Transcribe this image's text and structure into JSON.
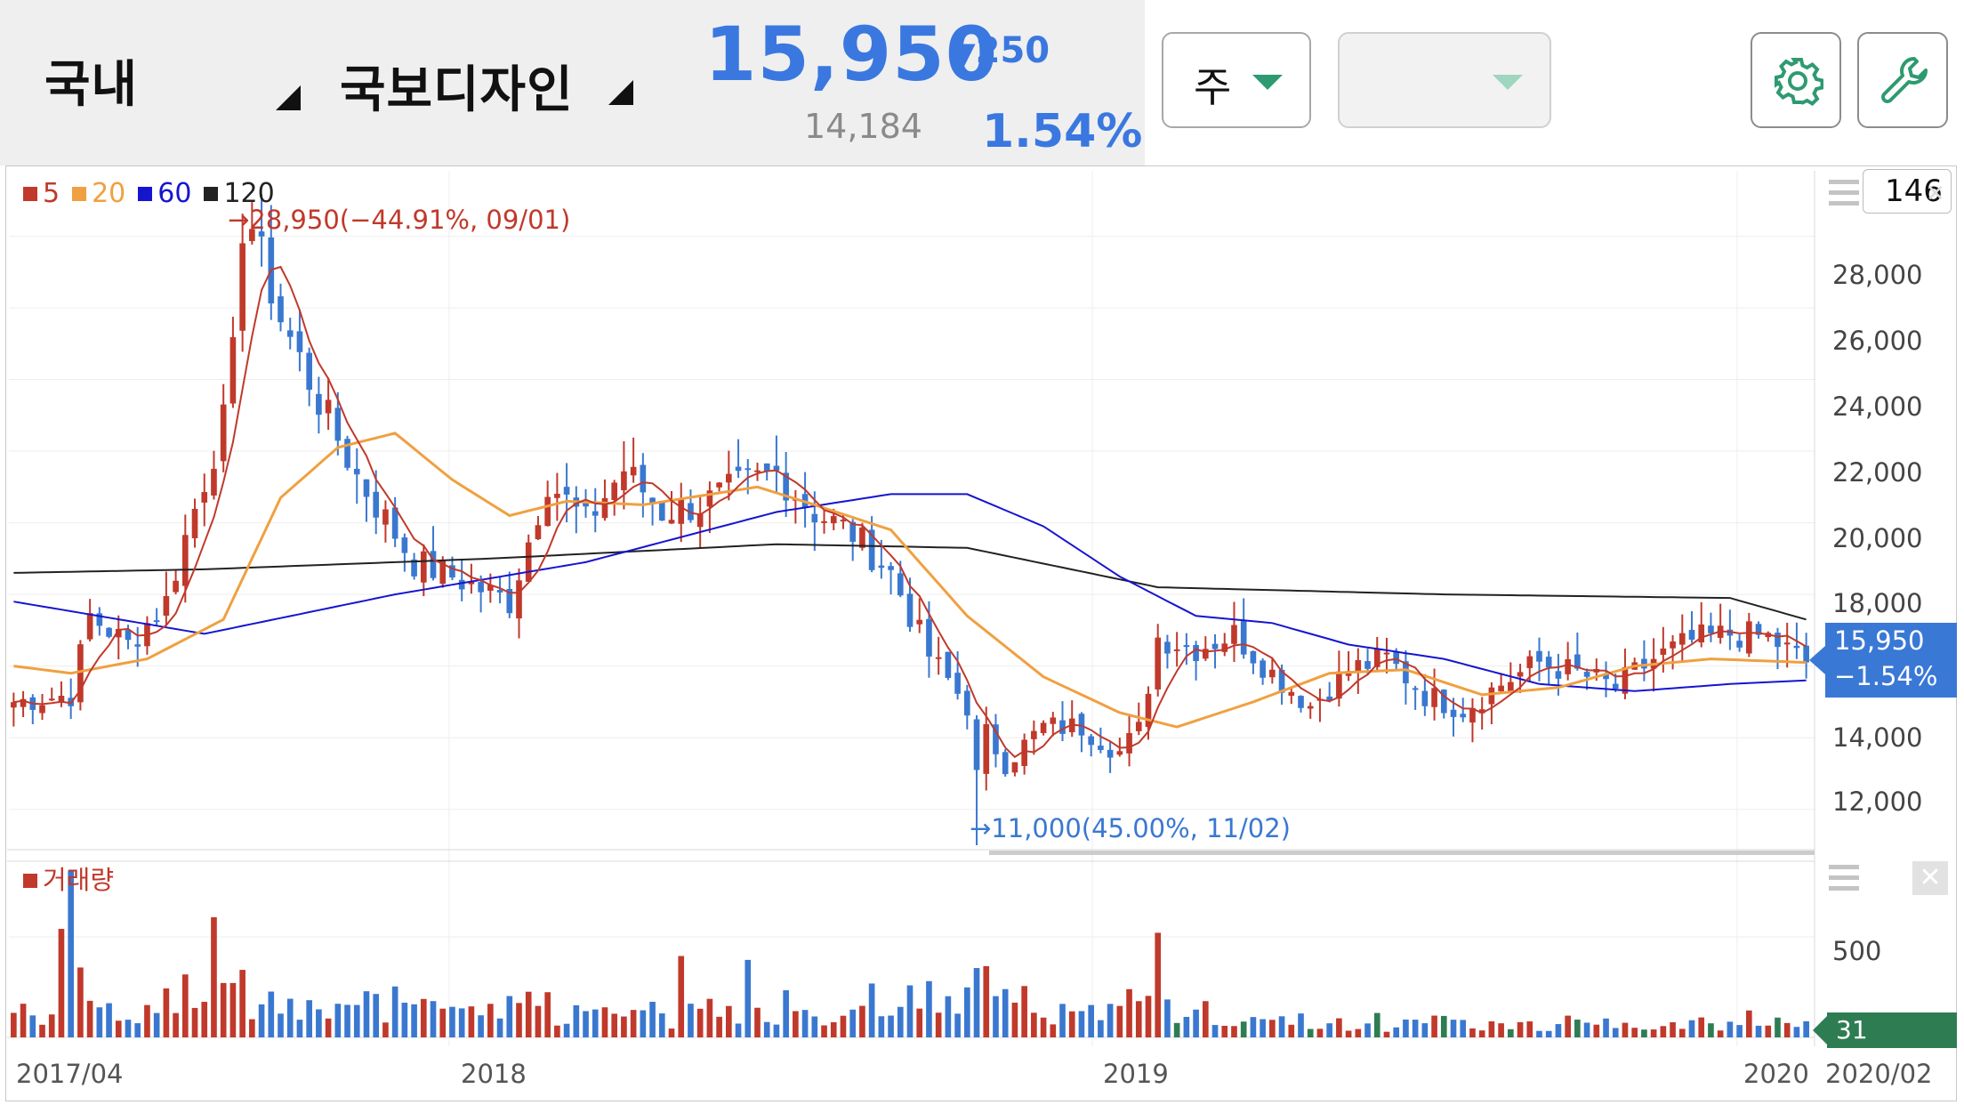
{
  "header": {
    "market_select": "국내",
    "stock_select": "국보디자인",
    "price": "15,950",
    "change_arrow": "▼",
    "change_value": "250",
    "volume": "14,184",
    "change_pct": "1.54%",
    "period_dropdown": "주",
    "second_dropdown": "",
    "settings_icon": "gear-icon",
    "tools_icon": "wrench-icon",
    "accent_color": "#3a78e0",
    "dropdown_caret_color": "#2e9a72"
  },
  "chart_toolbar": {
    "count_value": "146"
  },
  "chart_data": {
    "type": "candlestick",
    "legend": [
      {
        "label": "5",
        "color": "#c0392b"
      },
      {
        "label": "20",
        "color": "#f0a040"
      },
      {
        "label": "60",
        "color": "#1515d0"
      },
      {
        "label": "120",
        "color": "#222222"
      }
    ],
    "y_ticks": [
      "28,000",
      "26,000",
      "24,000",
      "22,000",
      "20,000",
      "18,000",
      "14,000",
      "12,000"
    ],
    "y_tick_values": [
      28000,
      26000,
      24000,
      22000,
      20000,
      18000,
      14000,
      12000
    ],
    "ylim": [
      11000,
      29500
    ],
    "x_labels": [
      "2017/04",
      "2018",
      "2019",
      "2020",
      "2020/02"
    ],
    "max_annotation": "→28,950(−44.91%, 09/01)",
    "min_annotation": "→11,000(45.00%, 11/02)",
    "current_price": "15,950",
    "current_change": "−1.54%",
    "up_color": "#c0392b",
    "down_color": "#3a78d0",
    "volume": {
      "legend": "거래량",
      "y_tick": "500",
      "current": "31",
      "ymax": 900
    },
    "close_keypoints": [
      [
        0,
        15000
      ],
      [
        6,
        15200
      ],
      [
        8,
        17400
      ],
      [
        12,
        16600
      ],
      [
        16,
        17800
      ],
      [
        18,
        19600
      ],
      [
        22,
        22800
      ],
      [
        25,
        28200
      ],
      [
        28,
        25700
      ],
      [
        32,
        23400
      ],
      [
        36,
        21300
      ],
      [
        42,
        18900
      ],
      [
        46,
        18500
      ],
      [
        52,
        17800
      ],
      [
        56,
        21200
      ],
      [
        60,
        20000
      ],
      [
        64,
        21500
      ],
      [
        68,
        20300
      ],
      [
        72,
        20500
      ],
      [
        76,
        21000
      ],
      [
        80,
        21400
      ],
      [
        84,
        20300
      ],
      [
        88,
        19700
      ],
      [
        92,
        18600
      ],
      [
        96,
        16300
      ],
      [
        100,
        14900
      ],
      [
        104,
        13300
      ],
      [
        108,
        14300
      ],
      [
        112,
        14300
      ],
      [
        116,
        13600
      ],
      [
        118,
        14200
      ],
      [
        120,
        16800
      ],
      [
        124,
        16500
      ],
      [
        128,
        16900
      ],
      [
        132,
        15800
      ],
      [
        136,
        14900
      ],
      [
        140,
        15900
      ],
      [
        144,
        16200
      ],
      [
        148,
        15200
      ],
      [
        152,
        14800
      ],
      [
        156,
        15500
      ],
      [
        160,
        16100
      ],
      [
        164,
        15800
      ],
      [
        168,
        15400
      ],
      [
        172,
        16200
      ],
      [
        176,
        16700
      ],
      [
        180,
        16900
      ],
      [
        184,
        16800
      ],
      [
        188,
        16100
      ]
    ],
    "ma120_keypoints": [
      [
        0,
        18600
      ],
      [
        20,
        18700
      ],
      [
        50,
        19000
      ],
      [
        80,
        19400
      ],
      [
        100,
        19300
      ],
      [
        120,
        18200
      ],
      [
        150,
        18000
      ],
      [
        180,
        17900
      ],
      [
        188,
        17300
      ]
    ],
    "ma60_keypoints": [
      [
        0,
        17800
      ],
      [
        20,
        16900
      ],
      [
        40,
        18000
      ],
      [
        60,
        18900
      ],
      [
        80,
        20300
      ],
      [
        92,
        20800
      ],
      [
        100,
        20800
      ],
      [
        108,
        19900
      ],
      [
        116,
        18500
      ],
      [
        124,
        17400
      ],
      [
        132,
        17200
      ],
      [
        140,
        16600
      ],
      [
        150,
        16200
      ],
      [
        160,
        15500
      ],
      [
        170,
        15300
      ],
      [
        180,
        15500
      ],
      [
        188,
        15600
      ]
    ],
    "ma20_keypoints": [
      [
        0,
        16000
      ],
      [
        6,
        15800
      ],
      [
        14,
        16200
      ],
      [
        22,
        17300
      ],
      [
        28,
        20700
      ],
      [
        34,
        22100
      ],
      [
        40,
        22500
      ],
      [
        46,
        21200
      ],
      [
        52,
        20200
      ],
      [
        58,
        20600
      ],
      [
        66,
        20500
      ],
      [
        78,
        21000
      ],
      [
        84,
        20500
      ],
      [
        92,
        19800
      ],
      [
        100,
        17400
      ],
      [
        108,
        15700
      ],
      [
        116,
        14700
      ],
      [
        122,
        14300
      ],
      [
        130,
        15000
      ],
      [
        138,
        15800
      ],
      [
        146,
        15900
      ],
      [
        154,
        15200
      ],
      [
        162,
        15400
      ],
      [
        170,
        16000
      ],
      [
        178,
        16200
      ],
      [
        188,
        16100
      ]
    ]
  }
}
